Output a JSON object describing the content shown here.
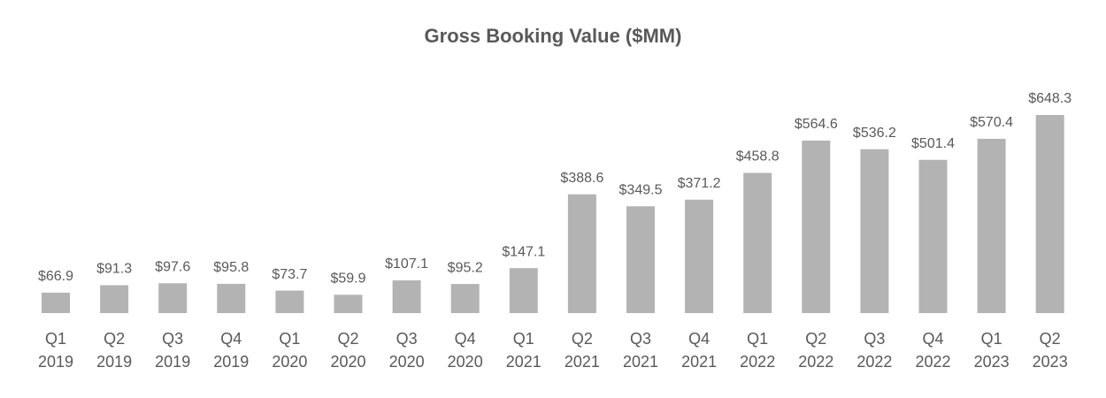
{
  "chart_data": {
    "type": "bar",
    "title": "Gross Booking Value ($MM)",
    "categories": [
      "Q1 2019",
      "Q2 2019",
      "Q3 2019",
      "Q4 2019",
      "Q1 2020",
      "Q2 2020",
      "Q3 2020",
      "Q4 2020",
      "Q1 2021",
      "Q2 2021",
      "Q3 2021",
      "Q4 2021",
      "Q1 2022",
      "Q2 2022",
      "Q3 2022",
      "Q4 2022",
      "Q1 2023",
      "Q2 2023"
    ],
    "values": [
      66.9,
      91.3,
      97.6,
      95.8,
      73.7,
      59.9,
      107.1,
      95.2,
      147.1,
      388.6,
      349.5,
      371.2,
      458.8,
      564.6,
      536.2,
      501.4,
      570.4,
      648.3
    ],
    "value_labels": [
      "$66.9",
      "$91.3",
      "$97.6",
      "$95.8",
      "$73.7",
      "$59.9",
      "$107.1",
      "$95.2",
      "$147.1",
      "$388.6",
      "$349.5",
      "$371.2",
      "$458.8",
      "$564.6",
      "$536.2",
      "$501.4",
      "$570.4",
      "$648.3"
    ],
    "color": "#b3b3b3"
  }
}
